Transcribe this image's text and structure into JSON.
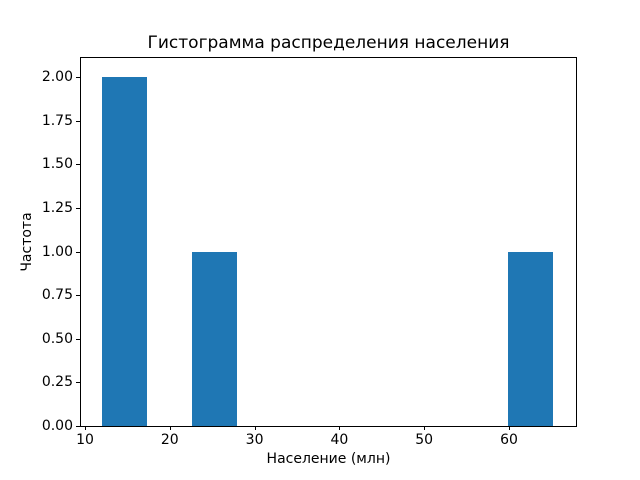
{
  "figure": {
    "background": "#ffffff"
  },
  "chart_data": {
    "type": "bar",
    "subtype": "histogram",
    "title": "Гистограмма распределения населения",
    "xlabel": "Население (млн)",
    "ylabel": "Частота",
    "bar_color": "#1f77b4",
    "grid": false,
    "legend": null,
    "xlim": [
      9.53,
      67.9
    ],
    "ylim": [
      0,
      2.11
    ],
    "xticks": {
      "values": [
        10,
        20,
        30,
        40,
        50,
        60
      ],
      "labels": [
        "10",
        "20",
        "30",
        "40",
        "50",
        "60"
      ]
    },
    "yticks": {
      "values": [
        0,
        0.25,
        0.5,
        0.75,
        1.0,
        1.25,
        1.5,
        1.75,
        2.0
      ],
      "labels": [
        "0.00",
        "0.25",
        "0.50",
        "0.75",
        "1.00",
        "1.25",
        "1.50",
        "1.75",
        "2.00"
      ]
    },
    "bars": [
      {
        "x_start": 12.0,
        "x_end": 17.32,
        "height": 2
      },
      {
        "x_start": 22.64,
        "x_end": 27.96,
        "height": 1
      },
      {
        "x_start": 59.88,
        "x_end": 65.2,
        "height": 1
      }
    ]
  }
}
